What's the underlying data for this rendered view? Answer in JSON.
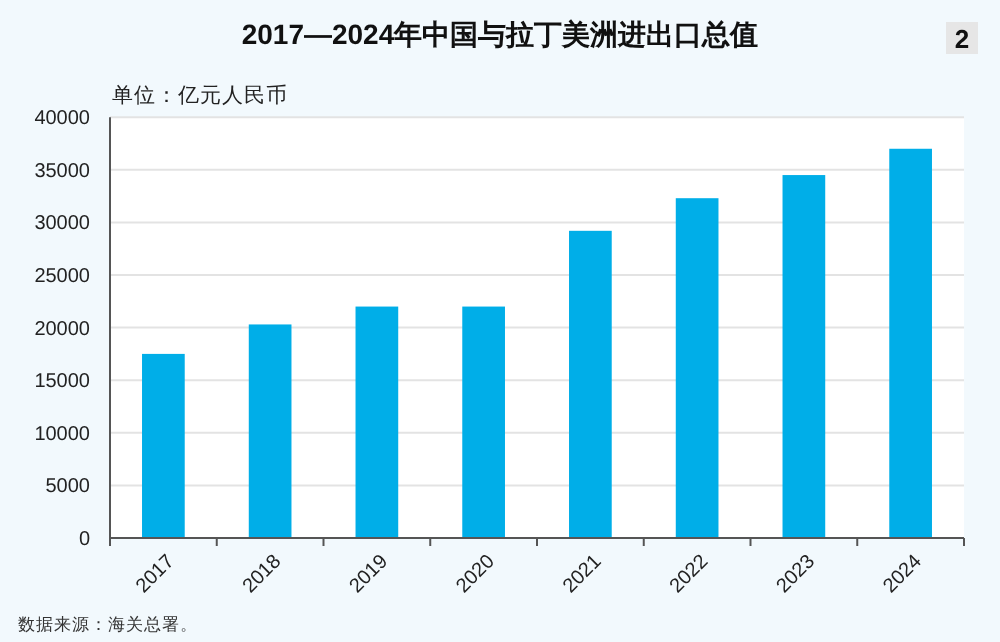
{
  "chart_data": {
    "type": "bar",
    "title": "2017—2024年中国与拉丁美洲进出口总值",
    "ylabel": "单位：亿元人民币",
    "categories": [
      "2017",
      "2018",
      "2019",
      "2020",
      "2021",
      "2022",
      "2023",
      "2024"
    ],
    "values": [
      17500,
      20300,
      22000,
      22000,
      29200,
      32300,
      34500,
      37000
    ],
    "color": "#00aee8",
    "ylim": [
      0,
      40000
    ],
    "yticks": [
      0,
      5000,
      10000,
      15000,
      20000,
      25000,
      30000,
      35000,
      40000
    ],
    "grid": "y",
    "annotations": [
      "数据来源：海关总署。",
      "2"
    ]
  }
}
